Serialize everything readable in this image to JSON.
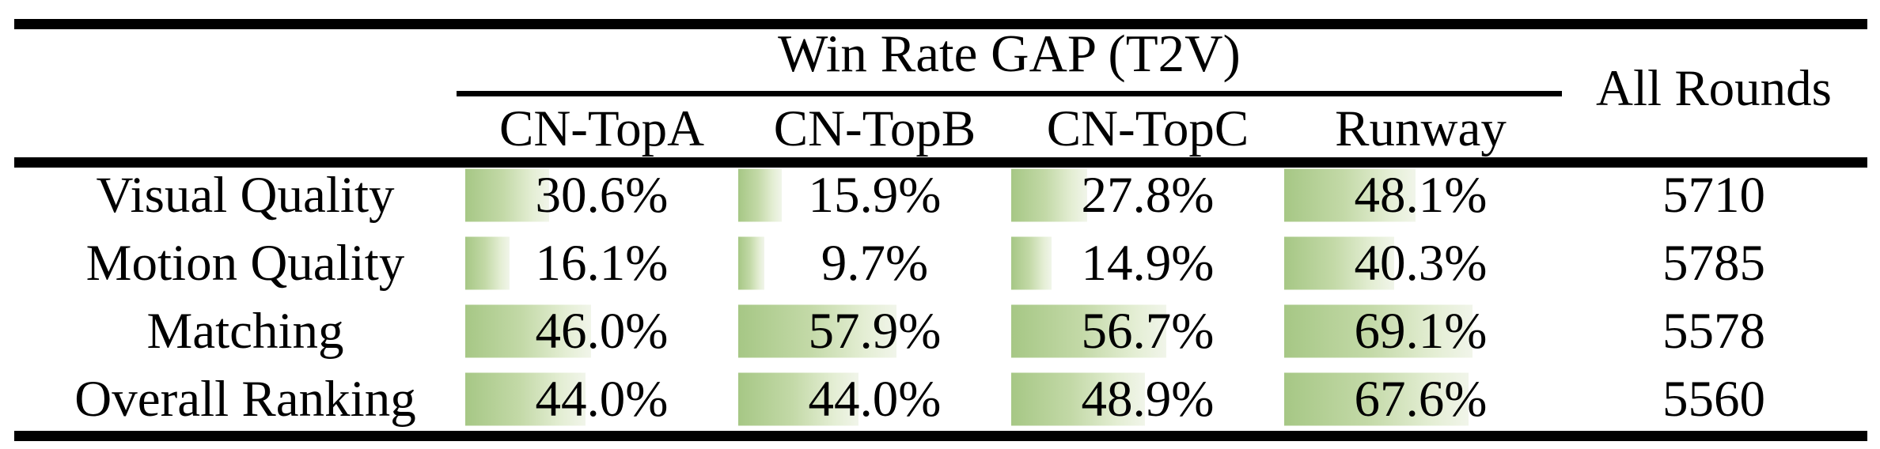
{
  "title": "Win Rate GAP (T2V)",
  "all_rounds_header": "All Rounds",
  "methods": [
    "CN-TopA",
    "CN-TopB",
    "CN-TopC",
    "Runway"
  ],
  "rows": [
    {
      "label": "Visual Quality",
      "gaps": [
        {
          "pct": 30.6,
          "text": "30.6%"
        },
        {
          "pct": 15.9,
          "text": "15.9%"
        },
        {
          "pct": 27.8,
          "text": "27.8%"
        },
        {
          "pct": 48.1,
          "text": "48.1%"
        }
      ],
      "all_rounds": "5710"
    },
    {
      "label": "Motion Quality",
      "gaps": [
        {
          "pct": 16.1,
          "text": "16.1%"
        },
        {
          "pct": 9.7,
          "text": "9.7%"
        },
        {
          "pct": 14.9,
          "text": "14.9%"
        },
        {
          "pct": 40.3,
          "text": "40.3%"
        }
      ],
      "all_rounds": "5785"
    },
    {
      "label": "Matching",
      "gaps": [
        {
          "pct": 46.0,
          "text": "46.0%"
        },
        {
          "pct": 57.9,
          "text": "57.9%"
        },
        {
          "pct": 56.7,
          "text": "56.7%"
        },
        {
          "pct": 69.1,
          "text": "69.1%"
        }
      ],
      "all_rounds": "5578"
    },
    {
      "label": "Overall Ranking",
      "gaps": [
        {
          "pct": 44.0,
          "text": "44.0%"
        },
        {
          "pct": 44.0,
          "text": "44.0%"
        },
        {
          "pct": 48.9,
          "text": "48.9%"
        },
        {
          "pct": 67.6,
          "text": "67.6%"
        }
      ],
      "all_rounds": "5560"
    }
  ],
  "colors": {
    "rule_black": "#000000",
    "bar_green": "#a6c785",
    "bar_mid": "#c3d9a7",
    "bar_light": "#e4eed4",
    "bar_faint": "#f1f5ea"
  }
}
